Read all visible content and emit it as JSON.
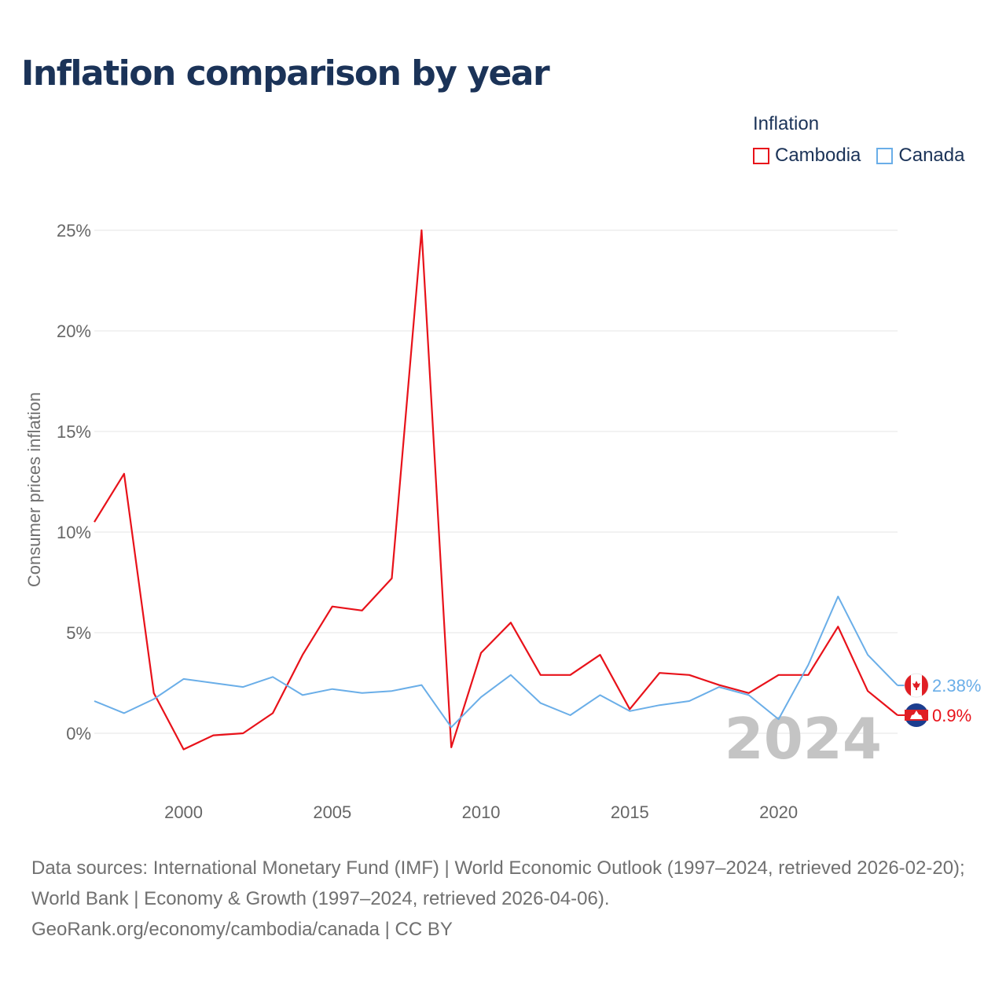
{
  "title": "Inflation comparison by year",
  "legend": {
    "title": "Inflation",
    "items": [
      {
        "label": "Cambodia",
        "color": "#e8121a"
      },
      {
        "label": "Canada",
        "color": "#6aaee8"
      }
    ]
  },
  "chart_data": {
    "type": "line",
    "title": "Inflation comparison by year",
    "xlabel": "",
    "ylabel": "Consumer prices inflation",
    "x": [
      1997,
      1998,
      1999,
      2000,
      2001,
      2002,
      2003,
      2004,
      2005,
      2006,
      2007,
      2008,
      2009,
      2010,
      2011,
      2012,
      2013,
      2014,
      2015,
      2016,
      2017,
      2018,
      2019,
      2020,
      2021,
      2022,
      2023,
      2024
    ],
    "xlim": [
      1997,
      2024
    ],
    "ylim": [
      -3.5,
      25
    ],
    "x_ticks": [
      2000,
      2005,
      2010,
      2015,
      2020
    ],
    "y_ticks": [
      0,
      5,
      10,
      15,
      20,
      25
    ],
    "y_tick_labels": [
      "0%",
      "5%",
      "10%",
      "15%",
      "20%",
      "25%"
    ],
    "grid": true,
    "legend_position": "top-right",
    "year_watermark": "2024",
    "series": [
      {
        "name": "Cambodia",
        "color": "#e8121a",
        "values": [
          10.5,
          12.9,
          2.0,
          -0.8,
          -0.1,
          0.0,
          1.0,
          3.9,
          6.3,
          6.1,
          7.7,
          25.0,
          -0.7,
          4.0,
          5.5,
          2.9,
          2.9,
          3.9,
          1.2,
          3.0,
          2.9,
          2.4,
          2.0,
          2.9,
          2.9,
          5.3,
          2.1,
          0.9
        ],
        "end_label": "0.9%"
      },
      {
        "name": "Canada",
        "color": "#6aaee8",
        "values": [
          1.6,
          1.0,
          1.7,
          2.7,
          2.5,
          2.3,
          2.8,
          1.9,
          2.2,
          2.0,
          2.1,
          2.4,
          0.3,
          1.8,
          2.9,
          1.5,
          0.9,
          1.9,
          1.1,
          1.4,
          1.6,
          2.3,
          1.9,
          0.7,
          3.4,
          6.8,
          3.9,
          2.38
        ],
        "end_label": "2.38%"
      }
    ]
  },
  "footer": {
    "sources": "Data sources: International Monetary Fund (IMF) | World Economic Outlook (1997–2024, retrieved 2026-02-20); World Bank | Economy & Growth (1997–2024, retrieved 2026-04-06).",
    "credit": "GeoRank.org/economy/cambodia/canada | CC BY"
  }
}
